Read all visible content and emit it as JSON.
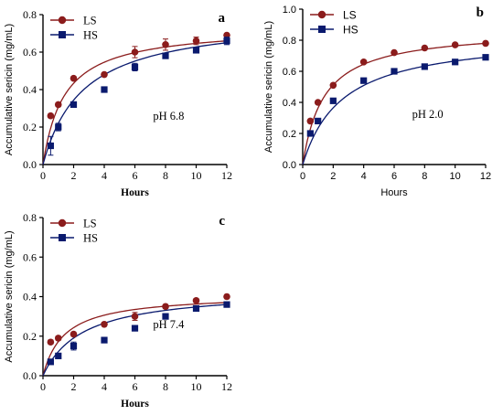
{
  "colors": {
    "ls": "#8b1c1c",
    "hs": "#0a1a6e",
    "axis": "#000000"
  },
  "chart_data": [
    {
      "type": "scatter",
      "panel_label": "a",
      "annotation": "pH 6.8",
      "xlabel": "Hours",
      "ylabel": "Accumulative sericin (mg/mL)",
      "xlim": [
        0,
        12
      ],
      "ylim": [
        0,
        0.8
      ],
      "xticks": [
        "0",
        "2",
        "4",
        "6",
        "8",
        "10",
        "12"
      ],
      "yticks": [
        "0.0",
        "0.2",
        "0.4",
        "0.6",
        "0.8"
      ],
      "legend_position": "top-left",
      "grid": false,
      "style": "serif",
      "series": [
        {
          "name": "LS",
          "marker": "circle",
          "x": [
            0.5,
            1,
            2,
            4,
            6,
            8,
            10,
            12
          ],
          "y": [
            0.26,
            0.32,
            0.46,
            0.48,
            0.6,
            0.64,
            0.66,
            0.69
          ],
          "err": [
            0.01,
            0.01,
            0.01,
            0.01,
            0.03,
            0.03,
            0.02,
            0.01
          ],
          "fit_end": 0.66
        },
        {
          "name": "HS",
          "marker": "square",
          "x": [
            0.5,
            1,
            2,
            4,
            6,
            8,
            10,
            12
          ],
          "y": [
            0.1,
            0.2,
            0.32,
            0.4,
            0.52,
            0.58,
            0.61,
            0.66
          ],
          "err": [
            0.05,
            0.02,
            0.01,
            0.01,
            0.02,
            0.01,
            0.01,
            0.02
          ],
          "fit_end": 0.65
        }
      ]
    },
    {
      "type": "scatter",
      "panel_label": "b",
      "annotation": "pH 2.0",
      "xlabel": "Hours",
      "ylabel": "Accumulative sericin (mg/mL)",
      "xlim": [
        0,
        12
      ],
      "ylim": [
        0,
        1.0
      ],
      "xticks": [
        "0",
        "2",
        "4",
        "6",
        "8",
        "10",
        "12"
      ],
      "yticks": [
        "0.0",
        "0.2",
        "0.4",
        "0.6",
        "0.8",
        "1.0"
      ],
      "legend_position": "top-left",
      "grid": false,
      "style": "sans",
      "series": [
        {
          "name": "LS",
          "marker": "circle",
          "x": [
            0.5,
            1,
            2,
            4,
            6,
            8,
            10,
            12
          ],
          "y": [
            0.28,
            0.4,
            0.51,
            0.66,
            0.72,
            0.75,
            0.77,
            0.78
          ],
          "err": [
            0,
            0,
            0,
            0,
            0,
            0,
            0,
            0
          ],
          "fit_end": 0.78
        },
        {
          "name": "HS",
          "marker": "square",
          "x": [
            0.5,
            1,
            2,
            4,
            6,
            8,
            10,
            12
          ],
          "y": [
            0.2,
            0.28,
            0.41,
            0.54,
            0.6,
            0.63,
            0.66,
            0.69
          ],
          "err": [
            0,
            0,
            0,
            0,
            0,
            0,
            0,
            0
          ],
          "fit_end": 0.69
        }
      ]
    },
    {
      "type": "scatter",
      "panel_label": "c",
      "annotation": "pH 7.4",
      "xlabel": "Hours",
      "ylabel": "Accumulative sericin (mg/mL)",
      "xlim": [
        0,
        12
      ],
      "ylim": [
        0,
        0.8
      ],
      "xticks": [
        "0",
        "2",
        "4",
        "6",
        "8",
        "10",
        "12"
      ],
      "yticks": [
        "0.0",
        "0.2",
        "0.4",
        "0.6",
        "0.8"
      ],
      "legend_position": "top-left",
      "grid": false,
      "style": "serif",
      "series": [
        {
          "name": "LS",
          "marker": "circle",
          "x": [
            0.5,
            1,
            2,
            4,
            6,
            8,
            10,
            12
          ],
          "y": [
            0.17,
            0.19,
            0.21,
            0.26,
            0.3,
            0.35,
            0.38,
            0.4
          ],
          "err": [
            0.01,
            0.01,
            0.01,
            0.01,
            0.02,
            0.01,
            0.01,
            0.01
          ],
          "fit_end": 0.37
        },
        {
          "name": "HS",
          "marker": "square",
          "x": [
            0.5,
            1,
            2,
            4,
            6,
            8,
            10,
            12
          ],
          "y": [
            0.07,
            0.1,
            0.15,
            0.18,
            0.24,
            0.3,
            0.34,
            0.36
          ],
          "err": [
            0.01,
            0.01,
            0.02,
            0.01,
            0.01,
            0.01,
            0.01,
            0.01
          ],
          "fit_end": 0.36
        }
      ]
    }
  ]
}
